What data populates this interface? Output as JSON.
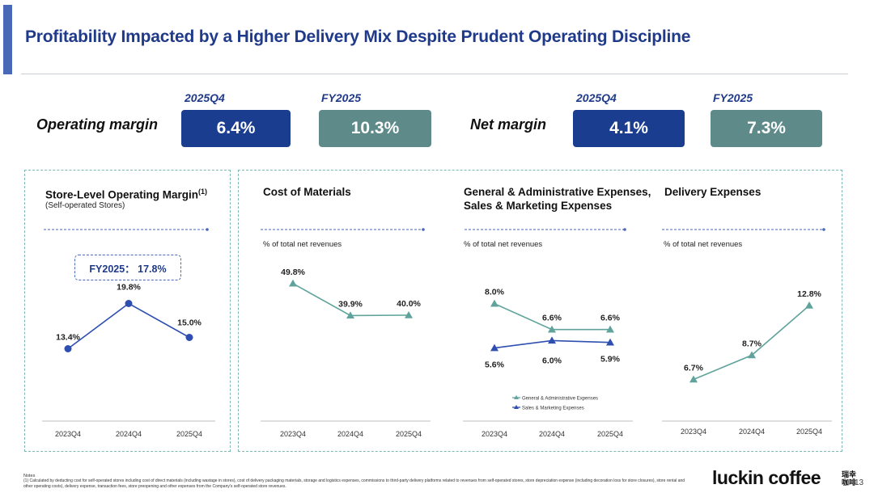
{
  "header": {
    "title": "Profitability Impacted by a Higher Delivery Mix Despite Prudent Operating Discipline"
  },
  "kpis": {
    "operating_margin": {
      "label": "Operating margin",
      "q_period": "2025Q4",
      "q_value": "6.4%",
      "fy_period": "FY2025",
      "fy_value": "10.3%"
    },
    "net_margin": {
      "label": "Net margin",
      "q_period": "2025Q4",
      "q_value": "4.1%",
      "fy_period": "FY2025",
      "fy_value": "7.3%"
    }
  },
  "panels": {
    "store": {
      "title": "Store-Level Operating Margin",
      "title_sup": "(1)",
      "subtitle": "(Self-operated Stores)",
      "badge": "FY2025： 17.8%"
    },
    "materials": {
      "title": "Cost of Materials",
      "subtitle": "% of total net revenues"
    },
    "ga": {
      "title_line1": "General & Administrative Expenses,",
      "title_line2": "Sales & Marketing Expenses",
      "subtitle": "% of total net revenues"
    },
    "delivery": {
      "title": "Delivery Expenses",
      "subtitle": "% of total net revenues"
    }
  },
  "colors": {
    "navy": "#1f3a8a",
    "kpi_blue": "#1a3d8f",
    "kpi_teal": "#5e8a8a",
    "teal_line": "#5fa39c",
    "blue_line": "#2e4fb0",
    "panel_border": "#7fb7b3"
  },
  "chart_data": [
    {
      "type": "line",
      "title": "Store-Level Operating Margin",
      "categories": [
        "2023Q4",
        "2024Q4",
        "2025Q4"
      ],
      "series": [
        {
          "values": [
            13.4,
            19.8,
            15.0
          ],
          "labels": [
            "13.4%",
            "19.8%",
            "15.0%"
          ]
        }
      ],
      "ylim": [
        5,
        25
      ]
    },
    {
      "type": "line",
      "title": "Cost of Materials",
      "categories": [
        "2023Q4",
        "2024Q4",
        "2025Q4"
      ],
      "series": [
        {
          "values": [
            49.8,
            39.9,
            40.0
          ],
          "labels": [
            "49.8%",
            "39.9%",
            "40.0%"
          ]
        }
      ],
      "ylim": [
        20,
        60
      ]
    },
    {
      "type": "line",
      "title": "General & Administrative Expenses, Sales & Marketing Expenses",
      "categories": [
        "2023Q4",
        "2024Q4",
        "2025Q4"
      ],
      "series": [
        {
          "name": "General & Administrative Expenses",
          "values": [
            8.0,
            6.6,
            6.6
          ],
          "labels": [
            "8.0%",
            "6.6%",
            "6.6%"
          ]
        },
        {
          "name": "Sales & Marketing Expenses",
          "values": [
            5.6,
            6.0,
            5.9
          ],
          "labels": [
            "5.6%",
            "6.0%",
            "5.9%"
          ]
        }
      ],
      "ylim": [
        3,
        10
      ],
      "legend": "bottom"
    },
    {
      "type": "line",
      "title": "Delivery Expenses",
      "categories": [
        "2023Q4",
        "2024Q4",
        "2025Q4"
      ],
      "series": [
        {
          "values": [
            6.7,
            8.7,
            12.8
          ],
          "labels": [
            "6.7%",
            "8.7%",
            "12.8%"
          ]
        }
      ],
      "ylim": [
        4,
        16
      ]
    }
  ],
  "notes": {
    "title": "Notes",
    "text": "(1)   Calculated by deducting cost for self-operated stores including cost of direct materials (including wastage in stores), cost of delivery packaging materials, storage and logistics expenses, commissions to third-party delivery platforms related to revenues from self-operated stores, store depreciation expense (including decoration loss for store closures), store rental and other operating costs), delivery expense, transaction fees, store preopening and other expenses from the Company's self-operated store revenues."
  },
  "footer": {
    "logo": "luckin coffee",
    "logo_cn": "瑞幸 咖啡",
    "page": "13"
  }
}
